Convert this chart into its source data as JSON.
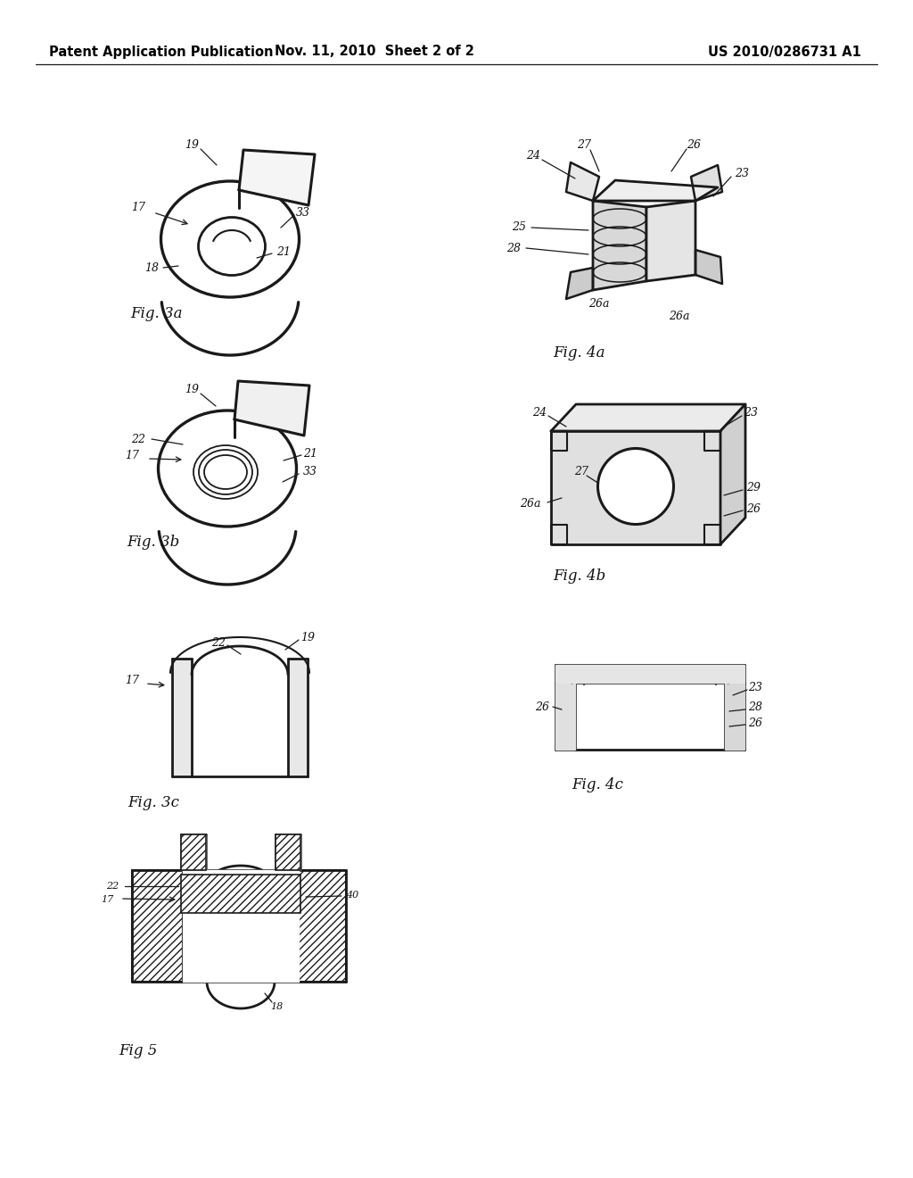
{
  "background_color": "#ffffff",
  "header_left": "Patent Application Publication",
  "header_center": "Nov. 11, 2010  Sheet 2 of 2",
  "header_right": "US 2010/0286731 A1",
  "header_fontsize": 10.5,
  "line_color": "#1a1a1a",
  "label_color": "#111111"
}
